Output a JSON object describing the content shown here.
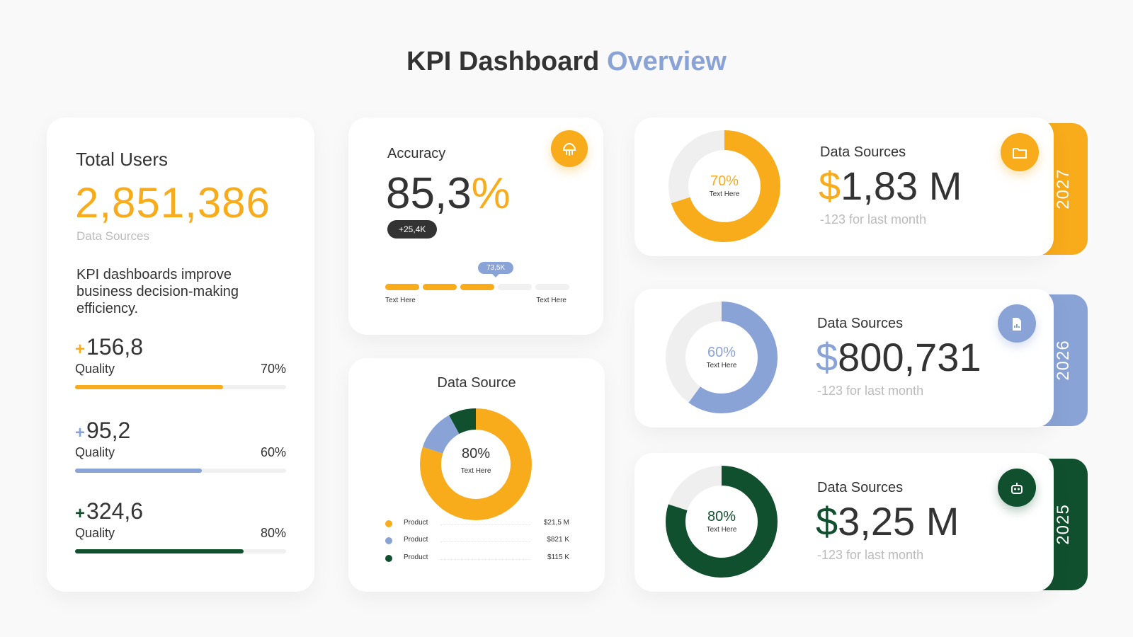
{
  "header": {
    "title_main": "KPI Dashboard",
    "title_accent": "Overview"
  },
  "colors": {
    "orange": "#f8ab1b",
    "blue": "#8aa3d6",
    "green": "#11502e",
    "track": "#efefef"
  },
  "users_card": {
    "label": "Total Users",
    "value": "2,851,386",
    "sub": "Data Sources",
    "description": "KPI dashboards improve business decision-making efficiency.",
    "metrics": [
      {
        "plus": "+",
        "value": "156,8",
        "label": "Quality",
        "percent_text": "70%",
        "fraction": 0.7,
        "color": "#f8ab1b"
      },
      {
        "plus": "+",
        "value": "95,2",
        "label": "Quality",
        "percent_text": "60%",
        "fraction": 0.6,
        "color": "#8aa3d6"
      },
      {
        "plus": "+",
        "value": "324,6",
        "label": "Quality",
        "percent_text": "80%",
        "fraction": 0.8,
        "color": "#11502e"
      }
    ]
  },
  "accuracy_card": {
    "label": "Accuracy",
    "value": "85,3",
    "unit": "%",
    "badge": "+25,4K",
    "icon": "brain-icon",
    "tooltip": "73,5K",
    "segments_filled": 3,
    "segments_total": 5,
    "left_caption": "Text Here",
    "right_caption": "Text Here"
  },
  "data_source_card": {
    "title": "Data Source",
    "center_value": "80%",
    "center_caption": "Text Here",
    "legend": [
      {
        "label": "Product",
        "amount": "$21,5 M",
        "color": "#f8ab1b"
      },
      {
        "label": "Product",
        "amount": "$821 K",
        "color": "#8aa3d6"
      },
      {
        "label": "Product",
        "amount": "$115 K",
        "color": "#11502e"
      }
    ]
  },
  "chart_data": {
    "type": "pie",
    "categories": [
      "Product",
      "Product",
      "Product"
    ],
    "values": [
      80,
      12,
      8
    ],
    "center_label": "80%"
  },
  "year_cards": [
    {
      "year": "2027",
      "label": "Data Sources",
      "currency": "$",
      "amount": "1,83 M",
      "note": "-123 for last month",
      "percent_text": "70%",
      "percent": 70,
      "caption": "Text Here",
      "color": "#f8ab1b",
      "icon": "folder-icon"
    },
    {
      "year": "2026",
      "label": "Data Sources",
      "currency": "$",
      "amount": "800,731",
      "note": "-123 for last month",
      "percent_text": "60%",
      "percent": 60,
      "caption": "Text Here",
      "color": "#8aa3d6",
      "icon": "chart-document-icon"
    },
    {
      "year": "2025",
      "label": "Data Sources",
      "currency": "$",
      "amount": "3,25 M",
      "note": "-123 for last month",
      "percent_text": "80%",
      "percent": 80,
      "caption": "Text Here",
      "color": "#11502e",
      "icon": "robot-icon"
    }
  ]
}
